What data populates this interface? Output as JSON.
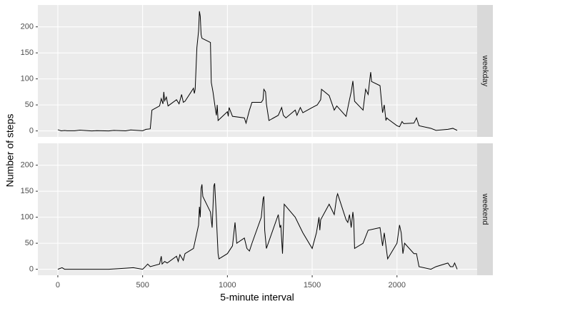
{
  "chart_data": {
    "type": "line",
    "x_label": "5-minute interval",
    "y_label": "Number of steps",
    "color": "#000000",
    "grid": true,
    "xlim": [
      -117.75,
      2472.75
    ],
    "ylim": [
      -11.5,
      242
    ],
    "xticks": [
      0,
      500,
      1000,
      1500,
      2000
    ],
    "yticks": [
      0,
      50,
      100,
      150,
      200
    ],
    "panels": [
      {
        "name": "weekday",
        "x": [
          0,
          20,
          40,
          55,
          100,
          130,
          200,
          230,
          300,
          330,
          400,
          430,
          500,
          520,
          545,
          555,
          600,
          610,
          620,
          625,
          630,
          640,
          650,
          700,
          715,
          730,
          740,
          750,
          800,
          805,
          810,
          820,
          830,
          835,
          840,
          845,
          850,
          900,
          905,
          915,
          930,
          935,
          940,
          945,
          1000,
          1005,
          1010,
          1030,
          1100,
          1110,
          1130,
          1145,
          1200,
          1210,
          1215,
          1225,
          1230,
          1245,
          1300,
          1320,
          1330,
          1345,
          1400,
          1410,
          1430,
          1445,
          1500,
          1530,
          1550,
          1555,
          1600,
          1630,
          1645,
          1700,
          1720,
          1730,
          1740,
          1750,
          1800,
          1815,
          1830,
          1840,
          1845,
          1850,
          1900,
          1915,
          1925,
          1935,
          1940,
          1950,
          2000,
          2015,
          2030,
          2040,
          2100,
          2115,
          2130,
          2200,
          2230,
          2300,
          2330,
          2355
        ],
        "values": [
          2.3,
          0.1,
          0.9,
          0.3,
          0.4,
          1.5,
          0,
          0.5,
          0,
          1,
          0.2,
          1.8,
          0.3,
          3,
          4,
          40,
          48,
          62,
          52,
          75,
          58,
          65,
          48,
          60,
          52,
          70,
          55,
          57,
          82,
          72,
          80,
          160,
          192,
          230,
          220,
          185,
          178,
          170,
          93,
          75,
          40,
          30,
          50,
          20,
          37,
          28,
          45,
          28,
          25,
          15,
          40,
          55,
          55,
          60,
          80,
          75,
          52,
          20,
          30,
          45,
          30,
          25,
          40,
          30,
          45,
          35,
          45,
          50,
          60,
          80,
          68,
          40,
          48,
          28,
          60,
          75,
          96,
          57,
          40,
          80,
          70,
          100,
          113,
          95,
          87,
          35,
          50,
          20,
          25,
          22,
          10,
          8,
          18,
          14,
          15,
          25,
          10,
          5,
          1,
          3,
          5,
          1
        ]
      },
      {
        "name": "weekend",
        "x": [
          0,
          25,
          40,
          100,
          200,
          300,
          400,
          445,
          500,
          510,
          530,
          545,
          600,
          610,
          615,
          630,
          645,
          700,
          710,
          720,
          740,
          750,
          800,
          830,
          835,
          840,
          845,
          850,
          855,
          900,
          910,
          920,
          925,
          935,
          945,
          950,
          1000,
          1030,
          1045,
          1055,
          1100,
          1115,
          1130,
          1145,
          1200,
          1210,
          1215,
          1220,
          1230,
          1300,
          1310,
          1315,
          1325,
          1335,
          1400,
          1430,
          1445,
          1500,
          1525,
          1540,
          1545,
          1550,
          1600,
          1630,
          1645,
          1650,
          1700,
          1710,
          1720,
          1730,
          1740,
          1745,
          1750,
          1800,
          1830,
          1900,
          1915,
          1925,
          1935,
          1945,
          2000,
          2015,
          2025,
          2035,
          2045,
          2100,
          2115,
          2130,
          2200,
          2230,
          2300,
          2315,
          2330,
          2340,
          2355
        ],
        "values": [
          0,
          3,
          0,
          0,
          0,
          0,
          2,
          3,
          0,
          3,
          10,
          5,
          10,
          25,
          10,
          15,
          12,
          25,
          15,
          28,
          17,
          30,
          40,
          85,
          120,
          100,
          155,
          163,
          140,
          110,
          80,
          160,
          165,
          100,
          30,
          20,
          30,
          45,
          90,
          50,
          60,
          40,
          35,
          50,
          100,
          135,
          140,
          75,
          40,
          105,
          80,
          85,
          30,
          125,
          100,
          80,
          70,
          40,
          70,
          100,
          75,
          95,
          125,
          105,
          140,
          145,
          95,
          90,
          105,
          80,
          110,
          95,
          40,
          50,
          75,
          80,
          45,
          70,
          45,
          20,
          50,
          85,
          70,
          30,
          50,
          30,
          30,
          5,
          0,
          5,
          12,
          5,
          5,
          12,
          0
        ]
      }
    ]
  }
}
